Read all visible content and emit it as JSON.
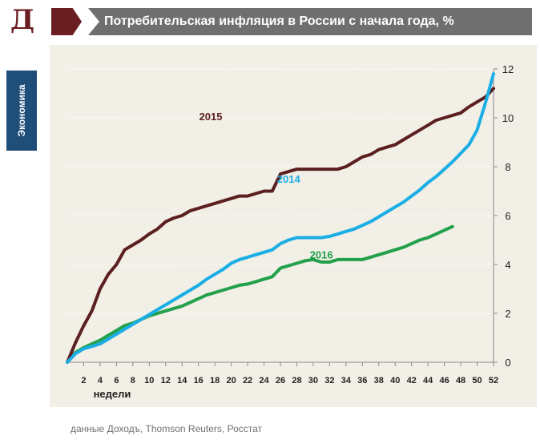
{
  "header": {
    "logo_letter": "Д",
    "title": "Потребительская инфляция в России с начала года, %"
  },
  "side_tab": {
    "label": "Экономика"
  },
  "source": "данные Доходъ,  Thomson Reuters, Росстат",
  "colors": {
    "brand": "#6b1e22",
    "title_bar": "#6f6f6f",
    "side_tab": "#1f4e79",
    "chart_bg": "#f1efe6",
    "series_2015": "#5c1f1f",
    "series_2014": "#1aaee5",
    "series_2016": "#22a04b"
  },
  "chart_data": {
    "type": "line",
    "title": "Потребительская инфляция в России с начала года, %",
    "xlabel": "недели",
    "ylabel": "",
    "xlim": [
      0,
      52
    ],
    "ylim": [
      0,
      12
    ],
    "x_ticks": [
      2,
      4,
      6,
      8,
      10,
      12,
      14,
      16,
      18,
      20,
      22,
      24,
      26,
      28,
      30,
      32,
      34,
      36,
      38,
      40,
      42,
      44,
      46,
      48,
      50,
      52
    ],
    "x_tick_labels": [
      "2",
      "4",
      "6",
      "8",
      "10",
      "12",
      "14",
      "16",
      "18",
      "20",
      "22",
      "24",
      "26",
      "28",
      "30",
      "32",
      "34",
      "36",
      "38",
      "40",
      "42",
      "44",
      "46",
      "48",
      "50",
      "52"
    ],
    "y_ticks": [
      0,
      2,
      4,
      6,
      8,
      10,
      12
    ],
    "y_tick_labels": [
      "0",
      "2",
      "4",
      "6",
      "8",
      "10",
      "12"
    ],
    "y_axis_side": "right",
    "grid": "horizontal dotted",
    "legend": "inline labels",
    "series": [
      {
        "name": "2015",
        "label_at": [
          17.5,
          9.9
        ],
        "x": [
          0,
          1,
          2,
          3,
          4,
          5,
          6,
          7,
          8,
          9,
          10,
          11,
          12,
          13,
          14,
          15,
          16,
          17,
          18,
          19,
          20,
          21,
          22,
          23,
          24,
          25,
          26,
          27,
          28,
          29,
          30,
          31,
          32,
          33,
          34,
          35,
          36,
          37,
          38,
          39,
          40,
          41,
          42,
          43,
          44,
          45,
          46,
          47,
          48,
          49,
          50,
          51,
          52
        ],
        "values": [
          0,
          0.8,
          1.5,
          2.1,
          3.0,
          3.6,
          4.0,
          4.6,
          4.8,
          5.0,
          5.25,
          5.45,
          5.75,
          5.9,
          6.0,
          6.2,
          6.3,
          6.4,
          6.5,
          6.6,
          6.7,
          6.8,
          6.8,
          6.9,
          7.0,
          7.0,
          7.7,
          7.8,
          7.9,
          7.9,
          7.9,
          7.9,
          7.9,
          7.9,
          8.0,
          8.2,
          8.4,
          8.5,
          8.7,
          8.8,
          8.9,
          9.1,
          9.3,
          9.5,
          9.7,
          9.9,
          10.0,
          10.1,
          10.2,
          10.45,
          10.65,
          10.85,
          11.2
        ]
      },
      {
        "name": "2014",
        "label_at": [
          27.0,
          7.35
        ],
        "x": [
          0,
          1,
          2,
          3,
          4,
          5,
          6,
          7,
          8,
          9,
          10,
          11,
          12,
          13,
          14,
          15,
          16,
          17,
          18,
          19,
          20,
          21,
          22,
          23,
          24,
          25,
          26,
          27,
          28,
          29,
          30,
          31,
          32,
          33,
          34,
          35,
          36,
          37,
          38,
          39,
          40,
          41,
          42,
          43,
          44,
          45,
          46,
          47,
          48,
          49,
          50,
          51,
          52
        ],
        "values": [
          0,
          0.35,
          0.55,
          0.65,
          0.75,
          0.95,
          1.15,
          1.35,
          1.55,
          1.75,
          1.95,
          2.15,
          2.35,
          2.55,
          2.75,
          2.95,
          3.15,
          3.4,
          3.6,
          3.8,
          4.05,
          4.2,
          4.3,
          4.4,
          4.5,
          4.6,
          4.85,
          5.0,
          5.1,
          5.1,
          5.1,
          5.1,
          5.15,
          5.25,
          5.35,
          5.45,
          5.6,
          5.75,
          5.95,
          6.15,
          6.35,
          6.55,
          6.8,
          7.05,
          7.35,
          7.6,
          7.9,
          8.2,
          8.55,
          8.9,
          9.5,
          10.6,
          11.8
        ]
      },
      {
        "name": "2016",
        "label_at": [
          31.0,
          4.25
        ],
        "x": [
          0,
          1,
          2,
          3,
          4,
          5,
          6,
          7,
          8,
          9,
          10,
          11,
          12,
          13,
          14,
          15,
          16,
          17,
          18,
          19,
          20,
          21,
          22,
          23,
          24,
          25,
          26,
          27,
          28,
          29,
          30,
          31,
          32,
          33,
          34,
          35,
          36,
          37,
          38,
          39,
          40,
          41,
          42,
          43,
          44,
          45,
          46,
          47
        ],
        "values": [
          0,
          0.4,
          0.6,
          0.75,
          0.9,
          1.1,
          1.3,
          1.5,
          1.6,
          1.75,
          1.9,
          2.0,
          2.1,
          2.2,
          2.3,
          2.45,
          2.6,
          2.75,
          2.85,
          2.95,
          3.05,
          3.15,
          3.2,
          3.3,
          3.4,
          3.5,
          3.85,
          3.95,
          4.05,
          4.15,
          4.2,
          4.1,
          4.1,
          4.2,
          4.2,
          4.2,
          4.2,
          4.3,
          4.4,
          4.5,
          4.6,
          4.7,
          4.85,
          5.0,
          5.1,
          5.25,
          5.4,
          5.55
        ]
      }
    ]
  }
}
